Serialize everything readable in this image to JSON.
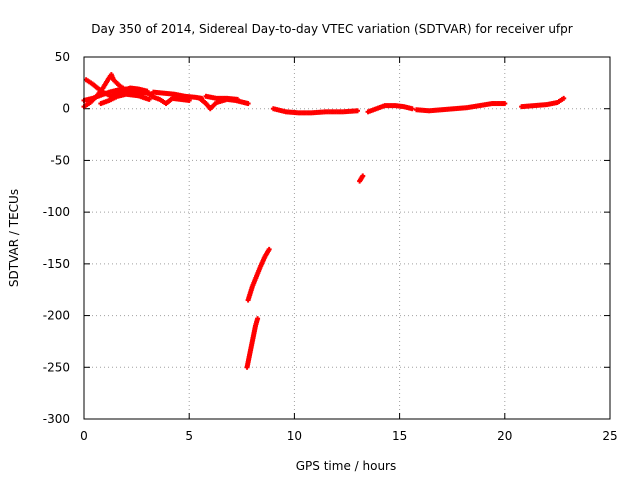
{
  "chart_data": {
    "type": "scatter",
    "title": "Day 350 of 2014, Sidereal Day-to-day VTEC variation (SDTVAR) for receiver ufpr",
    "xlabel": "GPS time / hours",
    "ylabel": "SDTVAR / TECUs",
    "xlim": [
      0,
      25
    ],
    "ylim": [
      -300,
      50
    ],
    "x_ticks": [
      0,
      5,
      10,
      15,
      20,
      25
    ],
    "y_ticks": [
      -300,
      -250,
      -200,
      -150,
      -100,
      -50,
      0,
      50
    ],
    "grid": true,
    "marker": "plus",
    "series_color": "#ff0000",
    "series": [
      {
        "segments": [
          [
            [
              0.0,
              2
            ],
            [
              0.3,
              6
            ],
            [
              0.6,
              12
            ],
            [
              0.9,
              20
            ],
            [
              1.2,
              30
            ],
            [
              1.3,
              33
            ],
            [
              1.4,
              28
            ],
            [
              1.7,
              22
            ],
            [
              2.0,
              18
            ],
            [
              2.4,
              14
            ],
            [
              2.8,
              11
            ],
            [
              3.1,
              9
            ]
          ],
          [
            [
              0.1,
              28
            ],
            [
              0.4,
              24
            ],
            [
              0.7,
              19
            ],
            [
              1.0,
              15
            ],
            [
              1.3,
              12
            ],
            [
              1.6,
              14
            ],
            [
              1.9,
              18
            ],
            [
              2.2,
              20
            ],
            [
              2.6,
              19
            ],
            [
              3.0,
              17
            ]
          ],
          [
            [
              0.0,
              8
            ],
            [
              0.4,
              10
            ],
            [
              0.8,
              13
            ],
            [
              1.2,
              16
            ],
            [
              1.6,
              18
            ],
            [
              2.0,
              19
            ],
            [
              2.4,
              18
            ],
            [
              2.8,
              16
            ],
            [
              3.2,
              14
            ]
          ],
          [
            [
              0.8,
              5
            ],
            [
              1.2,
              8
            ],
            [
              1.6,
              12
            ],
            [
              2.0,
              14
            ],
            [
              2.4,
              13
            ],
            [
              2.8,
              12
            ]
          ],
          [
            [
              3.3,
              16
            ],
            [
              3.8,
              15
            ],
            [
              4.3,
              14
            ],
            [
              4.8,
              12
            ],
            [
              5.3,
              11
            ],
            [
              5.6,
              10
            ]
          ],
          [
            [
              3.2,
              12
            ],
            [
              3.6,
              9
            ],
            [
              3.9,
              5
            ],
            [
              4.2,
              10
            ],
            [
              4.6,
              9
            ],
            [
              5.0,
              8
            ]
          ],
          [
            [
              5.5,
              10
            ],
            [
              5.8,
              5
            ],
            [
              6.0,
              0
            ],
            [
              6.3,
              6
            ],
            [
              6.8,
              9
            ],
            [
              7.2,
              8
            ],
            [
              7.6,
              6
            ],
            [
              7.8,
              5
            ]
          ],
          [
            [
              5.8,
              12
            ],
            [
              6.3,
              10
            ],
            [
              6.8,
              10
            ],
            [
              7.3,
              9
            ]
          ],
          [
            [
              9.0,
              0
            ],
            [
              9.6,
              -3
            ],
            [
              10.2,
              -4
            ],
            [
              10.8,
              -4
            ],
            [
              11.5,
              -3
            ],
            [
              12.3,
              -3
            ],
            [
              13.0,
              -2
            ]
          ],
          [
            [
              13.5,
              -3
            ],
            [
              13.9,
              0
            ],
            [
              14.3,
              3
            ],
            [
              14.8,
              3
            ],
            [
              15.2,
              2
            ],
            [
              15.6,
              0
            ]
          ],
          [
            [
              15.8,
              -1
            ],
            [
              16.4,
              -2
            ],
            [
              17.0,
              -1
            ],
            [
              17.6,
              0
            ],
            [
              18.2,
              1
            ],
            [
              18.8,
              3
            ],
            [
              19.4,
              5
            ],
            [
              20.0,
              5
            ]
          ],
          [
            [
              20.8,
              2
            ],
            [
              21.4,
              3
            ],
            [
              22.0,
              4
            ],
            [
              22.5,
              6
            ],
            [
              22.8,
              10
            ]
          ],
          [
            [
              13.1,
              -70
            ],
            [
              13.25,
              -65
            ]
          ],
          [
            [
              7.8,
              -185
            ],
            [
              8.0,
              -172
            ],
            [
              8.2,
              -162
            ],
            [
              8.4,
              -152
            ],
            [
              8.6,
              -143
            ],
            [
              8.8,
              -136
            ]
          ],
          [
            [
              7.75,
              -250
            ],
            [
              7.85,
              -240
            ],
            [
              7.95,
              -230
            ],
            [
              8.05,
              -220
            ],
            [
              8.15,
              -210
            ],
            [
              8.25,
              -203
            ]
          ]
        ]
      }
    ]
  }
}
